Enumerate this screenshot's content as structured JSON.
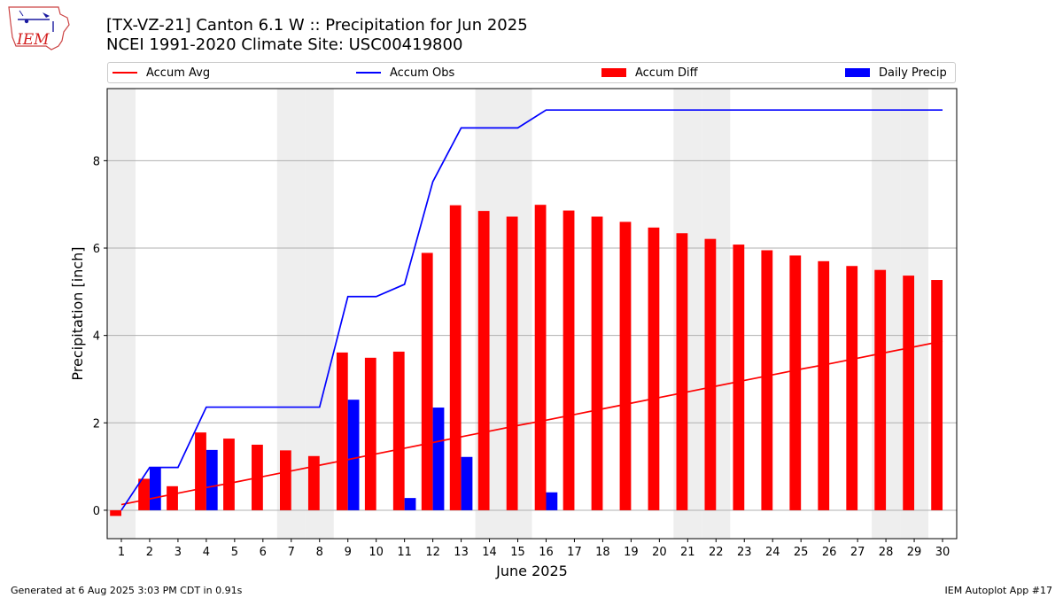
{
  "header": {
    "title_line1": "[TX-VZ-21] Canton 6.1 W :: Precipitation for Jun 2025",
    "title_line2": "NCEI 1991-2020 Climate Site: USC00419800"
  },
  "logo": {
    "text": "IEM"
  },
  "footer": {
    "left": "Generated at 6 Aug 2025 3:03 PM CDT in 0.91s",
    "right": "IEM Autoplot App #17"
  },
  "colors": {
    "avg": "#ff0000",
    "obs": "#0000ff",
    "diff": "#ff0000",
    "daily": "#0000ff",
    "weekend": "#eeeeee",
    "grid": "#b0b0b0"
  },
  "chart_data": {
    "type": "bar",
    "xlabel": "June 2025",
    "ylabel": "Precipitation [inch]",
    "x": [
      1,
      2,
      3,
      4,
      5,
      6,
      7,
      8,
      9,
      10,
      11,
      12,
      13,
      14,
      15,
      16,
      17,
      18,
      19,
      20,
      21,
      22,
      23,
      24,
      25,
      26,
      27,
      28,
      29,
      30
    ],
    "xticks": [
      "1",
      "2",
      "3",
      "4",
      "5",
      "6",
      "7",
      "8",
      "9",
      "10",
      "11",
      "12",
      "13",
      "14",
      "15",
      "16",
      "17",
      "18",
      "19",
      "20",
      "21",
      "22",
      "23",
      "24",
      "25",
      "26",
      "27",
      "28",
      "29",
      "30"
    ],
    "yticks": [
      0,
      2,
      4,
      6,
      8
    ],
    "xlim": [
      0.5,
      30.5
    ],
    "ylim": [
      -0.65,
      9.65
    ],
    "grid": "y",
    "legend_position": "top",
    "weekend_shading": [
      1,
      7,
      8,
      14,
      15,
      21,
      22,
      28,
      29
    ],
    "series": [
      {
        "name": "Accum Avg",
        "kind": "line",
        "values": [
          0.13,
          0.26,
          0.39,
          0.52,
          0.64,
          0.77,
          0.9,
          1.03,
          1.16,
          1.29,
          1.42,
          1.55,
          1.68,
          1.81,
          1.94,
          2.06,
          2.19,
          2.32,
          2.45,
          2.58,
          2.71,
          2.84,
          2.97,
          3.1,
          3.23,
          3.35,
          3.48,
          3.61,
          3.74,
          3.87
        ]
      },
      {
        "name": "Accum Obs",
        "kind": "line",
        "values": [
          0.0,
          0.98,
          0.98,
          2.36,
          2.36,
          2.36,
          2.36,
          2.36,
          4.89,
          4.89,
          5.17,
          7.52,
          8.75,
          8.75,
          8.75,
          9.16,
          9.16,
          9.16,
          9.16,
          9.16,
          9.16,
          9.16,
          9.16,
          9.16,
          9.16,
          9.16,
          9.16,
          9.16,
          9.16,
          9.16
        ]
      },
      {
        "name": "Accum Diff",
        "kind": "bar",
        "values": [
          -0.13,
          0.72,
          0.55,
          1.78,
          1.64,
          1.5,
          1.37,
          1.24,
          3.61,
          3.49,
          3.63,
          5.89,
          6.98,
          6.85,
          6.72,
          6.99,
          6.86,
          6.72,
          6.6,
          6.47,
          6.34,
          6.21,
          6.08,
          5.95,
          5.83,
          5.7,
          5.59,
          5.5,
          5.37,
          5.27
        ]
      },
      {
        "name": "Daily Precip",
        "kind": "bar",
        "values": [
          0,
          0.98,
          0,
          1.38,
          0,
          0,
          0,
          0,
          2.53,
          0,
          0.28,
          2.35,
          1.22,
          0,
          0,
          0.41,
          0,
          0,
          0,
          0,
          0,
          0,
          0,
          0,
          0,
          0,
          0,
          0,
          0,
          0
        ]
      }
    ]
  }
}
